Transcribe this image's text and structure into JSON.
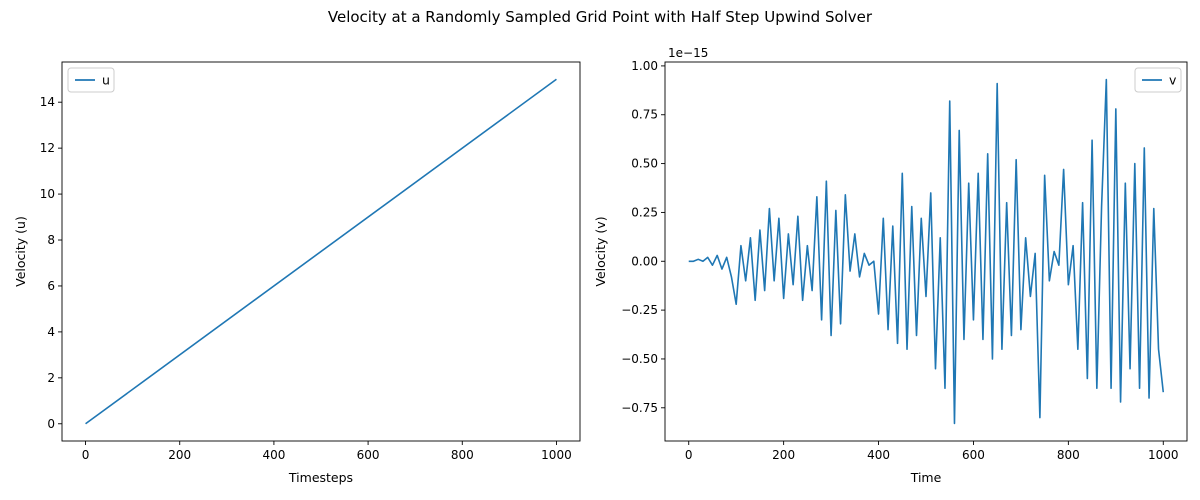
{
  "figure_title": "Velocity at a Randomly Sampled Grid Point with Half Step Upwind Solver",
  "colors": {
    "series": "#1f77b4",
    "axes": "#000000",
    "legend_border": "#cccccc"
  },
  "chart_data": [
    {
      "type": "line",
      "xlabel": "Timesteps",
      "ylabel": "Velocity (u)",
      "xlim": [
        -50,
        1050
      ],
      "ylim": [
        -0.75,
        15.75
      ],
      "xticks": [
        0,
        200,
        400,
        600,
        800,
        1000
      ],
      "yticks": [
        0,
        2,
        4,
        6,
        8,
        10,
        12,
        14
      ],
      "legend_position": "upper-left",
      "series": [
        {
          "name": "u",
          "x": [
            0,
            1000
          ],
          "y": [
            0,
            15
          ]
        }
      ]
    },
    {
      "type": "line",
      "xlabel": "Time",
      "ylabel": "Velocity (v)",
      "offset_label": "1e−15",
      "xlim": [
        -50,
        1050
      ],
      "ylim": [
        -0.92,
        1.02
      ],
      "xticks": [
        0,
        200,
        400,
        600,
        800,
        1000
      ],
      "yticks": [
        -0.75,
        -0.5,
        -0.25,
        0.0,
        0.25,
        0.5,
        0.75,
        1.0
      ],
      "yticklabels": [
        "−0.75",
        "−0.50",
        "−0.25",
        "0.00",
        "0.25",
        "0.50",
        "0.75",
        "1.00"
      ],
      "legend_position": "upper-right",
      "series": [
        {
          "name": "v",
          "x": [
            0,
            10,
            20,
            30,
            40,
            50,
            60,
            70,
            80,
            90,
            100,
            110,
            120,
            130,
            140,
            150,
            160,
            170,
            180,
            190,
            200,
            210,
            220,
            230,
            240,
            250,
            260,
            270,
            280,
            290,
            300,
            310,
            320,
            330,
            340,
            350,
            360,
            370,
            380,
            390,
            400,
            410,
            420,
            430,
            440,
            450,
            460,
            470,
            480,
            490,
            500,
            510,
            520,
            530,
            540,
            550,
            560,
            570,
            580,
            590,
            600,
            610,
            620,
            630,
            640,
            650,
            660,
            670,
            680,
            690,
            700,
            710,
            720,
            730,
            740,
            750,
            760,
            770,
            780,
            790,
            800,
            810,
            820,
            830,
            840,
            850,
            860,
            870,
            880,
            890,
            900,
            910,
            920,
            930,
            940,
            950,
            960,
            970,
            980,
            990,
            1000
          ],
          "y": [
            0.0,
            0.0,
            0.01,
            0.0,
            0.02,
            -0.02,
            0.03,
            -0.04,
            0.02,
            -0.08,
            -0.22,
            0.08,
            -0.1,
            0.12,
            -0.2,
            0.16,
            -0.15,
            0.27,
            -0.1,
            0.22,
            -0.19,
            0.14,
            -0.12,
            0.23,
            -0.2,
            0.08,
            -0.15,
            0.33,
            -0.3,
            0.41,
            -0.38,
            0.26,
            -0.32,
            0.34,
            -0.05,
            0.14,
            -0.08,
            0.04,
            -0.02,
            0.0,
            -0.27,
            0.22,
            -0.35,
            0.18,
            -0.42,
            0.45,
            -0.45,
            0.28,
            -0.38,
            0.22,
            -0.18,
            0.35,
            -0.55,
            0.12,
            -0.65,
            0.82,
            -0.83,
            0.67,
            -0.4,
            0.4,
            -0.3,
            0.45,
            -0.4,
            0.55,
            -0.5,
            0.91,
            -0.45,
            0.3,
            -0.38,
            0.52,
            -0.35,
            0.12,
            -0.18,
            0.04,
            -0.8,
            0.44,
            -0.1,
            0.05,
            -0.02,
            0.47,
            -0.12,
            0.08,
            -0.45,
            0.3,
            -0.6,
            0.62,
            -0.65,
            0.28,
            0.93,
            -0.65,
            0.78,
            -0.72,
            0.4,
            -0.55,
            0.5,
            -0.65,
            0.58,
            -0.7,
            0.27,
            -0.45,
            -0.67
          ]
        }
      ]
    }
  ]
}
